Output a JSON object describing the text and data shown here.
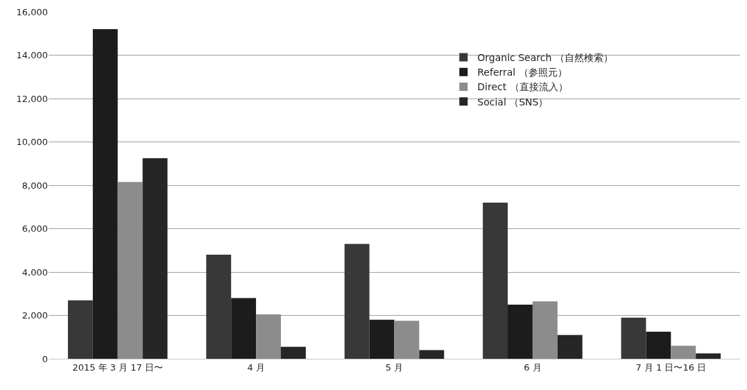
{
  "chart_data": {
    "type": "bar",
    "categories": [
      "2015 年 3 月 17 日〜",
      "4 月",
      "5 月",
      "6 月",
      "7 月 1 日〜16 日"
    ],
    "series": [
      {
        "name": "Organic Search （自然検索）",
        "color": "#383838",
        "values": [
          2700,
          4800,
          5300,
          7200,
          1900
        ]
      },
      {
        "name": "Referral （参照元）",
        "color": "#1c1c1c",
        "values": [
          15200,
          2800,
          1800,
          2500,
          1250
        ]
      },
      {
        "name": "Direct （直接流入）",
        "color": "#8c8c8c",
        "values": [
          8150,
          2050,
          1750,
          2650,
          600
        ]
      },
      {
        "name": "Social （SNS）",
        "color": "#262626",
        "values": [
          9250,
          550,
          400,
          1100,
          250
        ]
      }
    ],
    "ylim": [
      0,
      16000
    ],
    "yticks": [
      {
        "value": 0,
        "label": "0"
      },
      {
        "value": 2000,
        "label": "2,000"
      },
      {
        "value": 4000,
        "label": "4,000"
      },
      {
        "value": 6000,
        "label": "6,000"
      },
      {
        "value": 8000,
        "label": "8,000"
      },
      {
        "value": 10000,
        "label": "10,000"
      },
      {
        "value": 12000,
        "label": "12,000"
      },
      {
        "value": 14000,
        "label": "14,000"
      },
      {
        "value": 16000,
        "label": "16,000"
      }
    ],
    "grid": "y",
    "legend": "top right"
  }
}
